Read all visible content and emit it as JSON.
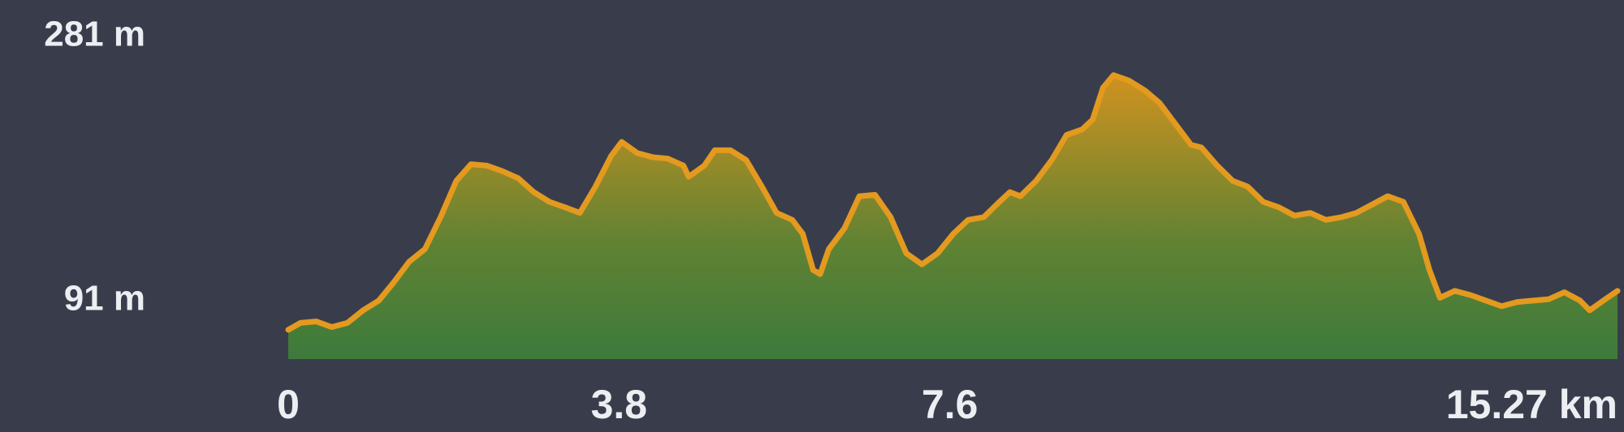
{
  "chart_data": {
    "type": "area",
    "x": [
      0,
      0.14,
      0.32,
      0.5,
      0.68,
      0.86,
      1.04,
      1.21,
      1.39,
      1.57,
      1.75,
      1.93,
      2.1,
      2.28,
      2.46,
      2.64,
      2.82,
      3.0,
      3.18,
      3.35,
      3.53,
      3.71,
      3.83,
      4.01,
      4.19,
      4.36,
      4.54,
      4.6,
      4.78,
      4.9,
      5.08,
      5.26,
      5.44,
      5.61,
      5.79,
      5.91,
      6.03,
      6.11,
      6.21,
      6.39,
      6.56,
      6.74,
      6.92,
      7.1,
      7.28,
      7.46,
      7.64,
      7.81,
      7.99,
      8.17,
      8.29,
      8.41,
      8.59,
      8.77,
      8.94,
      9.12,
      9.24,
      9.36,
      9.48,
      9.66,
      9.84,
      10.01,
      10.19,
      10.37,
      10.49,
      10.67,
      10.85,
      11.02,
      11.2,
      11.38,
      11.56,
      11.74,
      11.92,
      12.1,
      12.27,
      12.45,
      12.63,
      12.81,
      12.99,
      13.11,
      13.23,
      13.4,
      13.58,
      13.76,
      13.94,
      14.12,
      14.3,
      14.48,
      14.66,
      14.84,
      14.95,
      15.13,
      15.27
    ],
    "values": [
      70,
      75,
      76,
      72,
      75,
      84,
      91,
      104,
      119,
      128,
      151,
      177,
      189,
      188,
      184,
      179,
      169,
      162,
      158,
      154,
      173,
      195,
      205,
      197,
      194,
      193,
      188,
      180,
      188,
      199,
      199,
      192,
      173,
      154,
      149,
      139,
      113,
      110,
      128,
      143,
      166,
      167,
      151,
      125,
      117,
      125,
      139,
      149,
      151,
      162,
      169,
      166,
      177,
      192,
      210,
      214,
      221,
      244,
      253,
      249,
      242,
      233,
      218,
      203,
      201,
      188,
      177,
      173,
      162,
      158,
      152,
      154,
      149,
      151,
      154,
      160,
      166,
      162,
      139,
      113,
      93,
      98,
      95,
      91,
      87,
      90,
      91,
      92,
      97,
      91,
      84,
      92,
      98
    ],
    "color": "#e39a1f",
    "xlim": [
      0,
      15.27
    ],
    "xticks": [
      0,
      3.8,
      7.6,
      {
        "value": 15.27,
        "label": "15.27 km"
      }
    ],
    "ylim": [
      49,
      307
    ],
    "yticks": [
      {
        "value": 91,
        "label": "91 m"
      },
      {
        "value": 281,
        "label": "281 m"
      }
    ],
    "grid": false
  }
}
